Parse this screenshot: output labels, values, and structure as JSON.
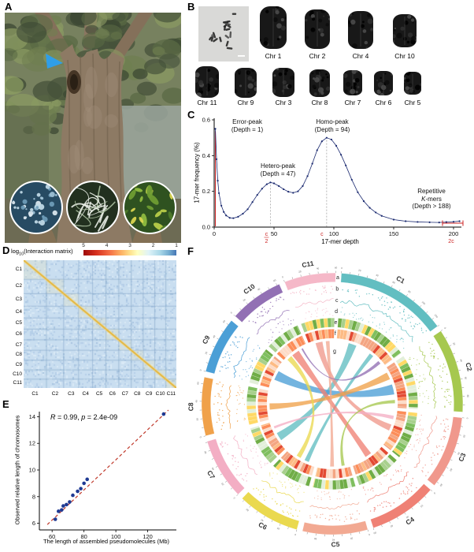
{
  "panelA": {
    "label": "A"
  },
  "panelB": {
    "label": "B",
    "row1": [
      "Chr 1",
      "Chr 2",
      "Chr 4",
      "Chr 10"
    ],
    "row2": [
      "Chr 11",
      "Chr 9",
      "Chr 3",
      "Chr 8",
      "Chr 7",
      "Chr 6",
      "Chr 5"
    ]
  },
  "panelC": {
    "label": "C",
    "ylabel": "17-mer frequency (%)",
    "xlabel": "17-mer depth",
    "yticks": [
      "0.0",
      "0.2",
      "0.4",
      "0.6"
    ],
    "xticks": [
      "0",
      "50",
      "100",
      "150",
      "200"
    ],
    "red_marks": {
      "half": {
        "num": "c",
        "den": "2",
        "depth": 47
      },
      "c": {
        "text": "c",
        "depth": 94
      },
      "two_c": {
        "text": "2c",
        "depth": 188
      }
    },
    "annotations": {
      "error": [
        "Error-peak",
        "(Depth = 1)"
      ],
      "hetero": [
        "Hetero-peak",
        "(Depth = 47)"
      ],
      "homo": [
        "Homo-peak",
        "(Depth = 94)"
      ],
      "repetitive": {
        "line1": "Repetitive",
        "k": "K",
        "k_rest": "-mers",
        "line3": "(Depth > 188)"
      }
    }
  },
  "panelD": {
    "label": "D",
    "colorbar_title_prefix": "log",
    "colorbar_title_sub": "10",
    "colorbar_title_suffix": "(Interaction matrix)",
    "colorbar_ticks": [
      "5",
      "4",
      "3",
      "2",
      "1"
    ],
    "chromosomes": [
      "C1",
      "C2",
      "C3",
      "C4",
      "C5",
      "C6",
      "C7",
      "C8",
      "C9",
      "C10",
      "C11"
    ]
  },
  "panelE": {
    "label": "E",
    "stats": {
      "r_sym": "R",
      "r_val": " = 0.99, ",
      "p_sym": "p",
      "p_val": " = 2.4e-09"
    },
    "ylabel": "Observed relative length of chromosomes",
    "xlabel": "The length of assembled pseudomolecules (Mb)",
    "yticks": [
      "6",
      "8",
      "10",
      "12",
      "14"
    ],
    "xticks": [
      "60",
      "80",
      "100",
      "120"
    ]
  },
  "panelF": {
    "label": "F",
    "track_letters": [
      "a",
      "b",
      "c",
      "d",
      "e",
      "f",
      "g"
    ]
  },
  "chart_data": [
    {
      "id": "kmer_distribution",
      "type": "line",
      "xlabel": "17-mer depth",
      "ylabel": "17-mer frequency (%)",
      "xlim": [
        0,
        210
      ],
      "ylim": [
        0,
        0.6
      ],
      "x": [
        1,
        2,
        3,
        4,
        6,
        8,
        10,
        13,
        16,
        20,
        24,
        28,
        32,
        36,
        40,
        44,
        47,
        50,
        54,
        58,
        62,
        66,
        70,
        74,
        78,
        82,
        86,
        90,
        94,
        98,
        102,
        106,
        110,
        115,
        120,
        125,
        130,
        135,
        140,
        150,
        160,
        170,
        180,
        188,
        194,
        200,
        205
      ],
      "y": [
        0.55,
        0.38,
        0.26,
        0.19,
        0.12,
        0.085,
        0.065,
        0.052,
        0.05,
        0.058,
        0.075,
        0.1,
        0.14,
        0.18,
        0.215,
        0.24,
        0.25,
        0.245,
        0.23,
        0.212,
        0.198,
        0.192,
        0.2,
        0.23,
        0.285,
        0.355,
        0.43,
        0.48,
        0.5,
        0.49,
        0.455,
        0.405,
        0.345,
        0.265,
        0.195,
        0.145,
        0.108,
        0.082,
        0.063,
        0.042,
        0.033,
        0.029,
        0.027,
        0.026,
        0.028,
        0.03,
        0.033
      ],
      "annotations": [
        "Error-peak (Depth = 1)",
        "Hetero-peak (Depth = 47)",
        "Homo-peak (Depth = 94)",
        "Repetitive K-mers (Depth > 188)"
      ]
    },
    {
      "id": "hic_matrix",
      "type": "heatmap",
      "title": "log10(Interaction matrix)",
      "labels": [
        "C1",
        "C2",
        "C3",
        "C4",
        "C5",
        "C6",
        "C7",
        "C8",
        "C9",
        "C10",
        "C11"
      ],
      "relative_lengths": [
        130,
        98,
        85,
        80,
        76,
        73,
        71,
        68,
        66,
        63,
        60
      ],
      "colorbar_ticks": [
        5,
        4,
        3,
        2,
        1
      ]
    },
    {
      "id": "length_correlation",
      "type": "scatter",
      "x": [
        62,
        64,
        66,
        67,
        69,
        71,
        73,
        76,
        78,
        80,
        82,
        130
      ],
      "y": [
        6.3,
        6.9,
        7.0,
        7.3,
        7.4,
        7.6,
        8.1,
        8.4,
        8.6,
        9.0,
        9.3,
        14.2
      ],
      "fit_line": {
        "x": [
          57,
          133
        ],
        "y": [
          5.9,
          14.5
        ],
        "style": "dashed",
        "color": "#c0392b"
      },
      "annotation": "R = 0.99, p = 2.4e-09",
      "xlabel": "The length of assembled pseudomolecules (Mb)",
      "ylabel": "Observed relative length of chromosomes",
      "xticks": [
        60,
        80,
        100,
        120
      ],
      "yticks": [
        6,
        8,
        10,
        12,
        14
      ]
    },
    {
      "id": "circos",
      "type": "circos",
      "tracks": [
        "a",
        "b",
        "c",
        "d",
        "e",
        "f",
        "g"
      ],
      "scale_tick_interval_mb": 10,
      "scale_label_interval_mb": 20,
      "track_palettes": {
        "e": [
          "#7fbf5f",
          "#a8d08d",
          "#e2efda",
          "#ffd966",
          "#70ad47"
        ],
        "f": [
          "#e34a33",
          "#fc8d59",
          "#fdbb84",
          "#fddbc7",
          "#f4a582"
        ]
      },
      "chromosomes": [
        {
          "name": "C1",
          "length_mb": 130,
          "color": "#62bec1"
        },
        {
          "name": "C2",
          "length_mb": 98,
          "color": "#a6c84f"
        },
        {
          "name": "C3",
          "length_mb": 85,
          "color": "#f0988c"
        },
        {
          "name": "C4",
          "length_mb": 80,
          "color": "#ef8175"
        },
        {
          "name": "C5",
          "length_mb": 76,
          "color": "#f2a992"
        },
        {
          "name": "C6",
          "length_mb": 73,
          "color": "#ead94f"
        },
        {
          "name": "C7",
          "length_mb": 71,
          "color": "#f3aec4"
        },
        {
          "name": "C8",
          "length_mb": 68,
          "color": "#f0a14a"
        },
        {
          "name": "C9",
          "length_mb": 66,
          "color": "#4b9fd6"
        },
        {
          "name": "C10",
          "length_mb": 63,
          "color": "#9270b4"
        },
        {
          "name": "C11",
          "length_mb": 60,
          "color": "#f5b8c8"
        }
      ],
      "links": [
        {
          "from": "C1",
          "from_pos": 0.3,
          "from_w": 0.15,
          "to": "C7",
          "to_pos": 0.45,
          "to_w": 0.28
        },
        {
          "from": "C1",
          "from_pos": 0.7,
          "from_w": 0.08,
          "to": "C6",
          "to_pos": 0.3,
          "to_w": 0.15
        },
        {
          "from": "C9",
          "from_pos": 0.5,
          "from_w": 0.35,
          "to": "C2",
          "to_pos": 0.55,
          "to_w": 0.25
        },
        {
          "from": "C4",
          "from_pos": 0.45,
          "from_w": 0.2,
          "to": "C10",
          "to_pos": 0.5,
          "to_w": 0.3
        },
        {
          "from": "C3",
          "from_pos": 0.5,
          "from_w": 0.18,
          "to": "C11",
          "to_pos": 0.4,
          "to_w": 0.28
        },
        {
          "from": "C8",
          "from_pos": 0.45,
          "from_w": 0.22,
          "to": "C2",
          "to_pos": 0.2,
          "to_w": 0.18
        },
        {
          "from": "C6",
          "from_pos": 0.6,
          "from_w": 0.15,
          "to": "C10",
          "to_pos": 0.2,
          "to_w": 0.2
        },
        {
          "from": "C5",
          "from_pos": 0.55,
          "from_w": 0.12,
          "to": "C11",
          "to_pos": 0.75,
          "to_w": 0.15
        },
        {
          "from": "C7",
          "from_pos": 0.8,
          "from_w": 0.08,
          "to": "C3",
          "to_pos": 0.2,
          "to_w": 0.1
        },
        {
          "from": "C2",
          "from_pos": 0.85,
          "from_w": 0.08,
          "to": "C5",
          "to_pos": 0.2,
          "to_w": 0.1
        },
        {
          "from": "C10",
          "from_pos": 0.8,
          "from_w": 0.06,
          "to": "C1",
          "to_pos": 0.9,
          "to_w": 0.06
        }
      ]
    }
  ]
}
